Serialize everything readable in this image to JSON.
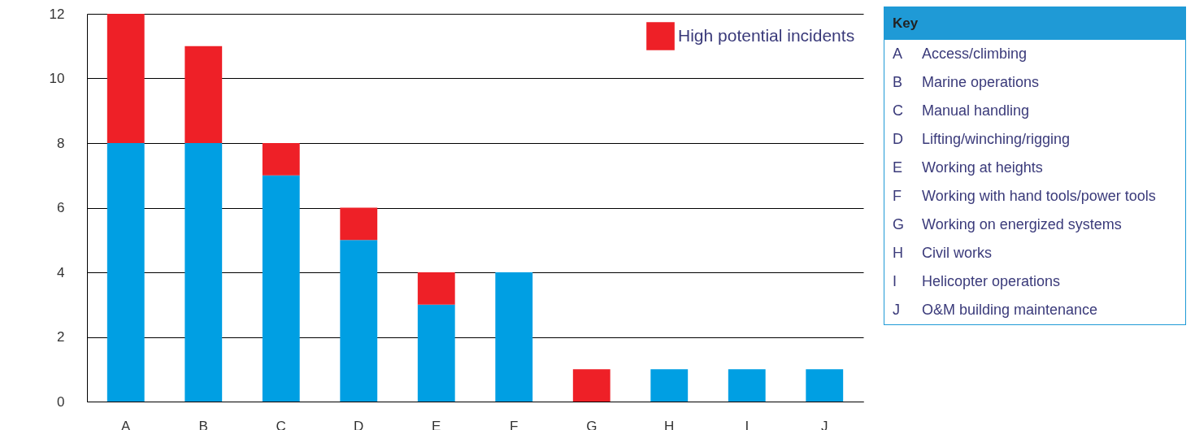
{
  "chart_data": {
    "type": "bar",
    "stacked": true,
    "categories": [
      "A",
      "B",
      "C",
      "D",
      "E",
      "F",
      "G",
      "H",
      "I",
      "J"
    ],
    "series": [
      {
        "color": "#009fe3",
        "values": [
          8,
          8,
          7,
          5,
          3,
          4,
          0,
          1,
          1,
          1
        ]
      },
      {
        "name": "High potential incidents",
        "color": "#ee2027",
        "values": [
          4,
          3,
          1,
          1,
          1,
          0,
          1,
          0,
          0,
          0
        ]
      }
    ],
    "ylim": [
      0,
      12
    ],
    "yticks": [
      0,
      2,
      4,
      6,
      8,
      10,
      12
    ],
    "grid": "y",
    "legend": "top right",
    "annotations": [
      "Key",
      "A Access/climbing",
      "B Marine operations",
      "C Manual handling",
      "D Lifting/winching/rigging",
      "E Working at heights",
      "F Working with hand tools/power tools",
      "G Working on energized systems",
      "H Civil works",
      "I Helicopter operations",
      "J O&M building maintenance"
    ]
  }
}
